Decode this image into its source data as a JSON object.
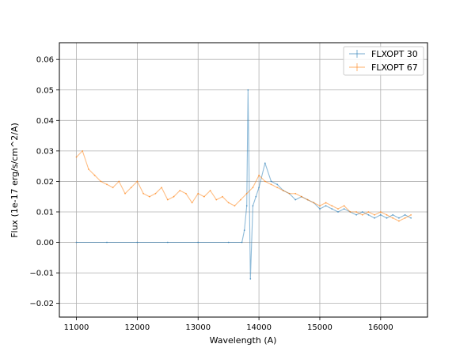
{
  "chart_data": {
    "type": "line",
    "xlabel": "Wavelength (A)",
    "ylabel": "Flux (1e-17 erg/s/cm^2/A)",
    "xlim": [
      10720,
      16770
    ],
    "ylim": [
      -0.0245,
      0.0655
    ],
    "x_ticks": [
      11000,
      12000,
      13000,
      14000,
      15000,
      16000
    ],
    "x_tick_labels": [
      "11000",
      "12000",
      "13000",
      "14000",
      "15000",
      "16000"
    ],
    "y_ticks": [
      -0.02,
      -0.01,
      0.0,
      0.01,
      0.02,
      0.03,
      0.04,
      0.05,
      0.06
    ],
    "y_tick_labels": [
      "−0.02",
      "−0.01",
      "0.00",
      "0.01",
      "0.02",
      "0.03",
      "0.04",
      "0.05",
      "0.06"
    ],
    "grid": true,
    "legend_position": "top-right",
    "colors": {
      "series_1": "#1f77b4",
      "series_2": "#ff7f0e"
    },
    "series": [
      {
        "name": "FLXOPT 30",
        "x": [
          11000,
          11500,
          12000,
          12500,
          13000,
          13500,
          13720,
          13760,
          13800,
          13820,
          13860,
          13900,
          13950,
          14000,
          14100,
          14200,
          14300,
          14400,
          14500,
          14600,
          14700,
          14800,
          14900,
          15000,
          15100,
          15200,
          15300,
          15400,
          15500,
          15600,
          15700,
          15800,
          15900,
          16000,
          16100,
          16200,
          16300,
          16400,
          16500
        ],
        "y": [
          0.0,
          0.0,
          0.0,
          0.0,
          0.0,
          0.0,
          0.0,
          0.004,
          0.012,
          0.05,
          -0.012,
          0.012,
          0.015,
          0.018,
          0.026,
          0.02,
          0.019,
          0.017,
          0.016,
          0.014,
          0.015,
          0.014,
          0.013,
          0.011,
          0.012,
          0.011,
          0.01,
          0.011,
          0.01,
          0.009,
          0.01,
          0.009,
          0.008,
          0.009,
          0.008,
          0.009,
          0.008,
          0.009,
          0.008
        ]
      },
      {
        "name": "FLXOPT 67",
        "x": [
          11000,
          11100,
          11200,
          11300,
          11400,
          11500,
          11600,
          11700,
          11800,
          11900,
          12000,
          12100,
          12200,
          12300,
          12400,
          12500,
          12600,
          12700,
          12800,
          12900,
          13000,
          13100,
          13200,
          13300,
          13400,
          13500,
          13600,
          13700,
          13800,
          13900,
          14000,
          14100,
          14200,
          14300,
          14400,
          14500,
          14600,
          14700,
          14800,
          14900,
          15000,
          15100,
          15200,
          15300,
          15400,
          15500,
          15600,
          15700,
          15800,
          15900,
          16000,
          16100,
          16200,
          16300,
          16400,
          16500
        ],
        "y": [
          0.028,
          0.03,
          0.024,
          0.022,
          0.02,
          0.019,
          0.018,
          0.02,
          0.016,
          0.018,
          0.02,
          0.016,
          0.015,
          0.016,
          0.018,
          0.014,
          0.015,
          0.017,
          0.016,
          0.013,
          0.016,
          0.015,
          0.017,
          0.014,
          0.015,
          0.013,
          0.012,
          0.014,
          0.016,
          0.018,
          0.022,
          0.02,
          0.019,
          0.018,
          0.017,
          0.016,
          0.016,
          0.015,
          0.014,
          0.013,
          0.012,
          0.013,
          0.012,
          0.011,
          0.012,
          0.01,
          0.01,
          0.009,
          0.01,
          0.009,
          0.01,
          0.009,
          0.008,
          0.007,
          0.008,
          0.009
        ]
      }
    ]
  }
}
